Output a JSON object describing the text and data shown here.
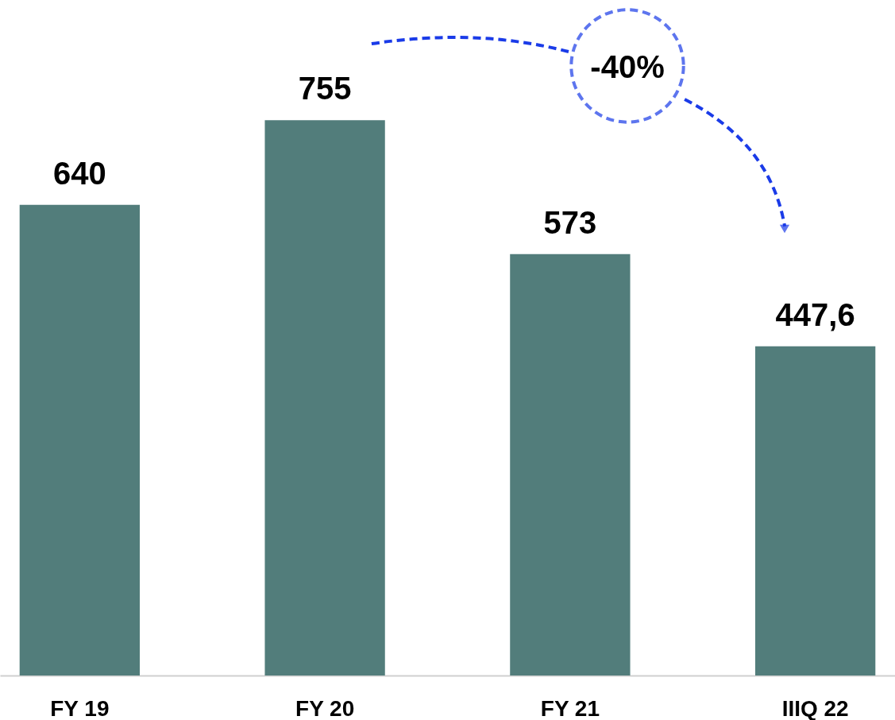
{
  "chart_data": {
    "type": "bar",
    "categories": [
      "FY 19",
      "FY 20",
      "FY 21",
      "IIIQ 22"
    ],
    "values": [
      640,
      755,
      573,
      447.6
    ],
    "value_labels": [
      "640",
      "755",
      "573",
      "447,6"
    ],
    "color": "#527d7b",
    "annotations": [
      "-40%"
    ],
    "grid": false
  }
}
